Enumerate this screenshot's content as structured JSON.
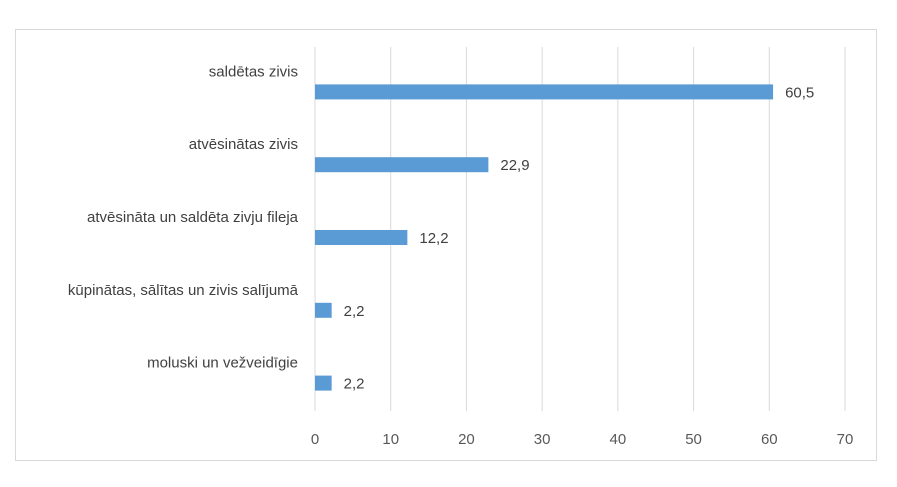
{
  "chart_data": {
    "type": "bar",
    "orientation": "horizontal",
    "categories": [
      "saldētas zivis",
      "atvēsinātas zivis",
      "atvēsināta un saldēta zivju fileja",
      "kūpinātas, sālītas un zivis salījumā",
      "moluski un vežveidīgie"
    ],
    "values": [
      60.5,
      22.9,
      12.2,
      2.2,
      2.2
    ],
    "value_labels": [
      "60,5",
      "22,9",
      "12,2",
      "2,2",
      "2,2"
    ],
    "x_ticks": [
      "0",
      "10",
      "20",
      "30",
      "40",
      "50",
      "60",
      "70"
    ],
    "xlim": [
      0,
      70
    ],
    "grid": true,
    "legend": "none",
    "bar_color": "#5b9bd5",
    "grid_color": "#d9d9d9"
  }
}
